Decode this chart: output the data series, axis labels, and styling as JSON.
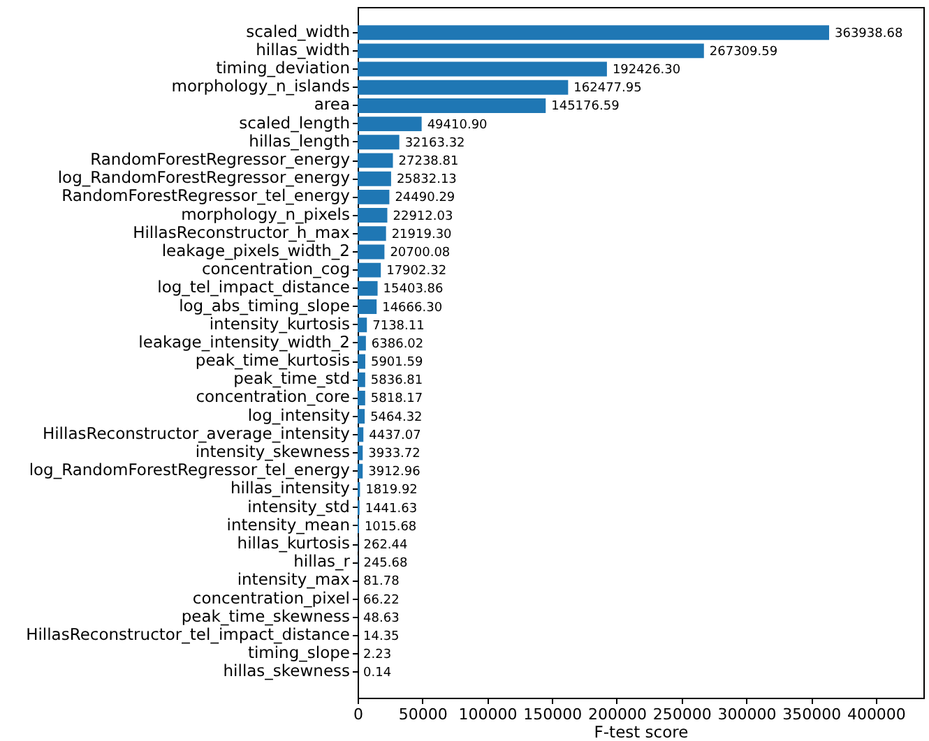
{
  "chart_data": {
    "type": "bar",
    "orientation": "horizontal",
    "xlabel": "F-test score",
    "categories": [
      "scaled_width",
      "hillas_width",
      "timing_deviation",
      "morphology_n_islands",
      "area",
      "scaled_length",
      "hillas_length",
      "RandomForestRegressor_energy",
      "log_RandomForestRegressor_energy",
      "RandomForestRegressor_tel_energy",
      "morphology_n_pixels",
      "HillasReconstructor_h_max",
      "leakage_pixels_width_2",
      "concentration_cog",
      "log_tel_impact_distance",
      "log_abs_timing_slope",
      "intensity_kurtosis",
      "leakage_intensity_width_2",
      "peak_time_kurtosis",
      "peak_time_std",
      "concentration_core",
      "log_intensity",
      "HillasReconstructor_average_intensity",
      "intensity_skewness",
      "log_RandomForestRegressor_tel_energy",
      "hillas_intensity",
      "intensity_std",
      "intensity_mean",
      "hillas_kurtosis",
      "hillas_r",
      "intensity_max",
      "concentration_pixel",
      "peak_time_skewness",
      "HillasReconstructor_tel_impact_distance",
      "timing_slope",
      "hillas_skewness"
    ],
    "values": [
      363938.68,
      267309.59,
      192426.3,
      162477.95,
      145176.59,
      49410.9,
      32163.32,
      27238.81,
      25832.13,
      24490.29,
      22912.03,
      21919.3,
      20700.08,
      17902.32,
      15403.86,
      14666.3,
      7138.11,
      6386.02,
      5901.59,
      5836.81,
      5818.17,
      5464.32,
      4437.07,
      3933.72,
      3912.96,
      1819.92,
      1441.63,
      1015.68,
      262.44,
      245.68,
      81.78,
      66.22,
      48.63,
      14.35,
      2.23,
      0.14
    ],
    "value_labels": [
      "363938.68",
      "267309.59",
      "192426.30",
      "162477.95",
      "145176.59",
      "49410.90",
      "32163.32",
      "27238.81",
      "25832.13",
      "24490.29",
      "22912.03",
      "21919.30",
      "20700.08",
      "17902.32",
      "15403.86",
      "14666.30",
      "7138.11",
      "6386.02",
      "5901.59",
      "5836.81",
      "5818.17",
      "5464.32",
      "4437.07",
      "3933.72",
      "3912.96",
      "1819.92",
      "1441.63",
      "1015.68",
      "262.44",
      "245.68",
      "81.78",
      "66.22",
      "48.63",
      "14.35",
      "2.23",
      "0.14"
    ],
    "color": "#1f77b4",
    "xlim": [
      0,
      436726.4
    ],
    "xticks": [
      0,
      50000,
      100000,
      150000,
      200000,
      250000,
      300000,
      350000,
      400000
    ],
    "grid": false
  }
}
